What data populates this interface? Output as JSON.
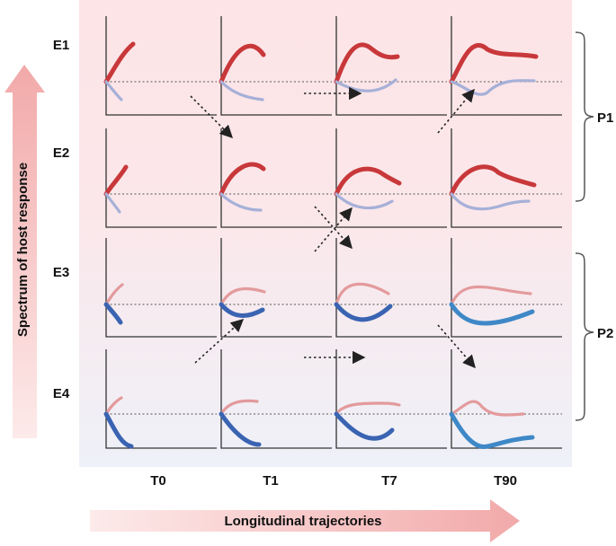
{
  "y_axis": {
    "label": "Spectrum of host response"
  },
  "x_axis": {
    "label": "Longitudinal trajectories"
  },
  "rows": [
    {
      "label": "E1"
    },
    {
      "label": "E2"
    },
    {
      "label": "E3"
    },
    {
      "label": "E4"
    }
  ],
  "columns": [
    {
      "label": "T0"
    },
    {
      "label": "T1"
    },
    {
      "label": "T7"
    },
    {
      "label": "T90"
    }
  ],
  "groups": [
    {
      "label": "P1",
      "rows": [
        "E1",
        "E2"
      ]
    },
    {
      "label": "P2",
      "rows": [
        "E3",
        "E4"
      ]
    }
  ],
  "colors": {
    "strong_up": "#c8383a",
    "weak_up": "#e39a9c",
    "weak_down": "#a6b0d8",
    "strong_down": "#3a64b2",
    "late_down": "#3f88c7",
    "panel_top": "#fce4e6",
    "panel_bottom": "#edf0f8"
  }
}
